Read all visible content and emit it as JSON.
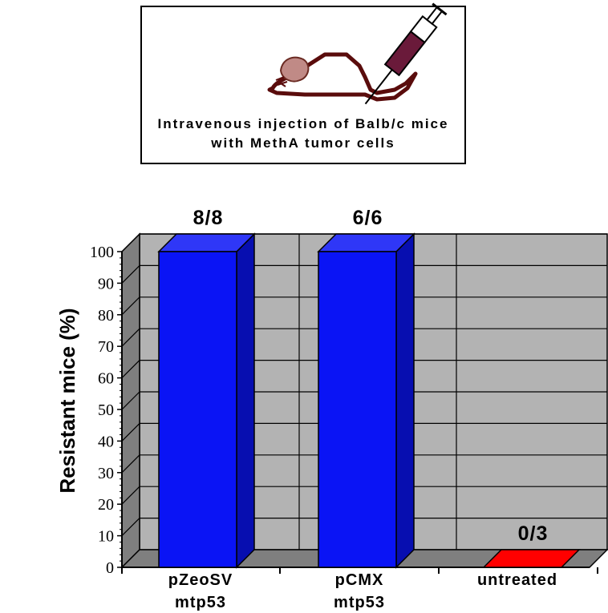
{
  "figure": {
    "box_text_line1": "Intravenous injection of Balb/c mice",
    "box_text_line2": "with MethA tumor cells",
    "illustration": "mouse-syringe-icon"
  },
  "chart_data": {
    "type": "bar",
    "categories": [
      {
        "line1": "pZeoSV",
        "line2": "mtp53"
      },
      {
        "line1": "pCMX",
        "line2": "mtp53"
      },
      {
        "line1": "untreated",
        "line2": ""
      }
    ],
    "values": [
      100,
      100,
      0
    ],
    "bar_labels": [
      "8/8",
      "6/6",
      "0/3"
    ],
    "colors": [
      "#0a14f5",
      "#0a14f5",
      "#ff0000"
    ],
    "ylabel": "Resistant mice (%)",
    "ylim": [
      0,
      100
    ],
    "yticks": [
      0,
      10,
      20,
      30,
      40,
      50,
      60,
      70,
      80,
      90,
      100
    ],
    "grid": true,
    "style": "3d-column",
    "wall_color": "#b3b3b3",
    "floor_color": "#7f7f7f"
  }
}
